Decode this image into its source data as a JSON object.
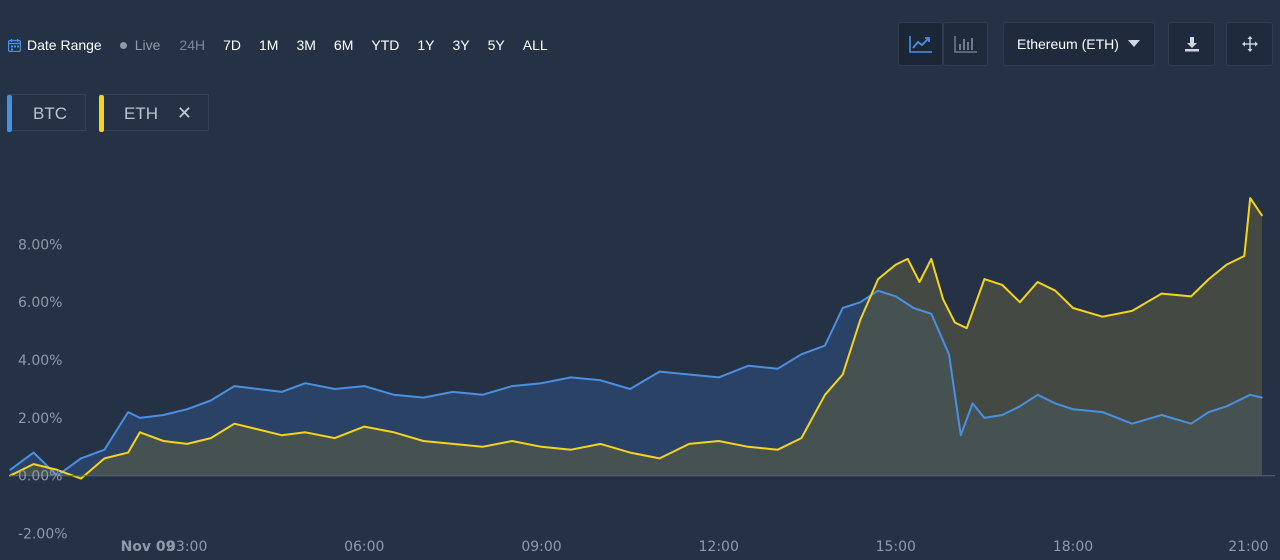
{
  "toolbar": {
    "date_range_label": "Date Range",
    "live_label": "Live",
    "ranges": [
      "24H",
      "7D",
      "1M",
      "3M",
      "6M",
      "YTD",
      "1Y",
      "3Y",
      "5Y",
      "ALL"
    ],
    "disabled_range": "24H",
    "asset_select": "Ethereum (ETH)",
    "icons": [
      "calendar-icon",
      "line-chart-icon",
      "bar-chart-icon",
      "chevron-down-icon",
      "download-icon",
      "move-icon"
    ]
  },
  "legend": [
    {
      "name": "BTC",
      "color": "#4a90e2",
      "removable": false
    },
    {
      "name": "ETH",
      "color": "#f4d41c",
      "removable": true
    }
  ],
  "chart_data": {
    "type": "line",
    "area_fill": true,
    "grid": false,
    "legend_position": "top-left",
    "y_unit": "%",
    "ylim": [
      -2.5,
      10.4
    ],
    "y_ticks": [
      -2,
      0,
      2,
      4,
      6,
      8
    ],
    "y_tick_labels": [
      "-2.00%",
      "0.00%",
      "2.00%",
      "4.00%",
      "6.00%",
      "8.00%"
    ],
    "x_range": [
      "Nov 09 00:00",
      "Nov 09 21:10"
    ],
    "x_ticks": [
      "Nov 09",
      "03:00",
      "06:00",
      "09:00",
      "12:00",
      "15:00",
      "18:00",
      "21:00"
    ],
    "x_tick_hours": [
      0,
      3,
      6,
      9,
      12,
      15,
      18,
      21
    ],
    "series": [
      {
        "name": "BTC",
        "color": "#4a90e2",
        "x_hours": [
          0,
          0.4,
          0.8,
          1.2,
          1.6,
          2.0,
          2.2,
          2.6,
          3.0,
          3.4,
          3.8,
          4.2,
          4.6,
          5.0,
          5.5,
          6.0,
          6.5,
          7.0,
          7.5,
          8.0,
          8.5,
          9.0,
          9.5,
          10.0,
          10.5,
          11.0,
          11.5,
          12.0,
          12.5,
          13.0,
          13.4,
          13.8,
          14.1,
          14.4,
          14.7,
          15.0,
          15.3,
          15.6,
          15.9,
          16.1,
          16.3,
          16.5,
          16.8,
          17.1,
          17.4,
          17.7,
          18.0,
          18.5,
          19.0,
          19.5,
          20.0,
          20.3,
          20.6,
          21.0,
          21.2
        ],
        "values": [
          0.2,
          0.8,
          0.0,
          0.6,
          0.9,
          2.2,
          2.0,
          2.1,
          2.3,
          2.6,
          3.1,
          3.0,
          2.9,
          3.2,
          3.0,
          3.1,
          2.8,
          2.7,
          2.9,
          2.8,
          3.1,
          3.2,
          3.4,
          3.3,
          3.0,
          3.6,
          3.5,
          3.4,
          3.8,
          3.7,
          4.2,
          4.5,
          5.8,
          6.0,
          6.4,
          6.2,
          5.8,
          5.6,
          4.2,
          1.4,
          2.5,
          2.0,
          2.1,
          2.4,
          2.8,
          2.5,
          2.3,
          2.2,
          1.8,
          2.1,
          1.8,
          2.2,
          2.4,
          2.8,
          2.7
        ]
      },
      {
        "name": "ETH",
        "color": "#f4d41c",
        "x_hours": [
          0,
          0.4,
          0.8,
          1.2,
          1.6,
          2.0,
          2.2,
          2.6,
          3.0,
          3.4,
          3.8,
          4.2,
          4.6,
          5.0,
          5.5,
          6.0,
          6.5,
          7.0,
          7.5,
          8.0,
          8.5,
          9.0,
          9.5,
          10.0,
          10.5,
          11.0,
          11.5,
          12.0,
          12.5,
          13.0,
          13.4,
          13.8,
          14.1,
          14.4,
          14.7,
          15.0,
          15.2,
          15.4,
          15.6,
          15.8,
          16.0,
          16.2,
          16.5,
          16.8,
          17.1,
          17.4,
          17.7,
          18.0,
          18.5,
          19.0,
          19.5,
          20.0,
          20.3,
          20.6,
          20.9,
          21.0,
          21.2
        ],
        "values": [
          0.0,
          0.4,
          0.2,
          -0.1,
          0.6,
          0.8,
          1.5,
          1.2,
          1.1,
          1.3,
          1.8,
          1.6,
          1.4,
          1.5,
          1.3,
          1.7,
          1.5,
          1.2,
          1.1,
          1.0,
          1.2,
          1.0,
          0.9,
          1.1,
          0.8,
          0.6,
          1.1,
          1.2,
          1.0,
          0.9,
          1.3,
          2.8,
          3.5,
          5.4,
          6.8,
          7.3,
          7.5,
          6.7,
          7.5,
          6.1,
          5.3,
          5.1,
          6.8,
          6.6,
          6.0,
          6.7,
          6.4,
          5.8,
          5.5,
          5.7,
          6.3,
          6.2,
          6.8,
          7.3,
          7.6,
          9.6,
          9.0
        ]
      }
    ]
  }
}
